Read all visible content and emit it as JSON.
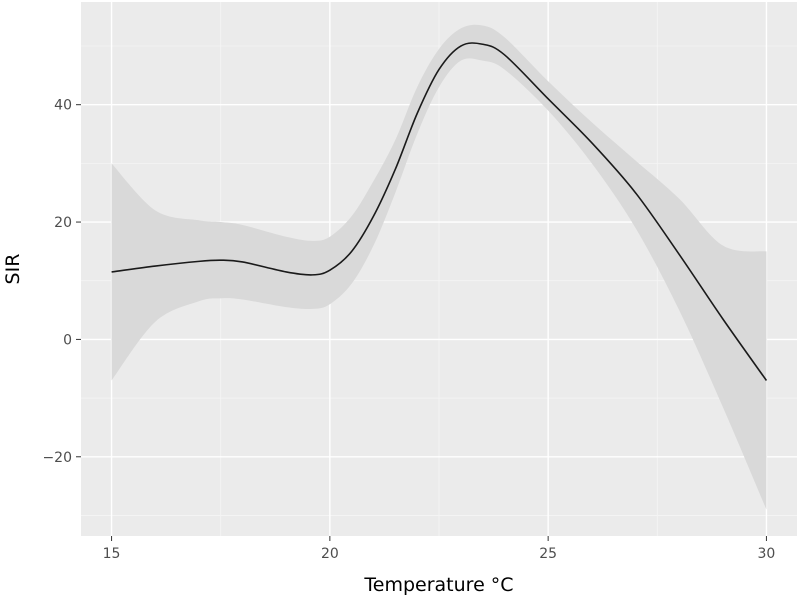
{
  "chart_data": {
    "type": "line",
    "title": "",
    "xlabel": "Temperature °C",
    "ylabel": "SIR",
    "xlim": [
      14.3,
      30.7
    ],
    "ylim": [
      -33.5,
      57.5
    ],
    "x_ticks": [
      15,
      20,
      25,
      30
    ],
    "y_ticks": [
      -20,
      0,
      20,
      40
    ],
    "grid": true,
    "legend": "none",
    "colors": {
      "panel_background": "#ebebeb",
      "grid_major": "#ffffff",
      "grid_minor": "#f5f5f5",
      "line": "#1a1a1a",
      "ribbon": "#d9d9d9",
      "tick_text": "#4d4d4d",
      "tick_mark": "#333333"
    },
    "series": [
      {
        "x": [
          15,
          16,
          17,
          17.5,
          18,
          19,
          19.6,
          20,
          20.5,
          21,
          21.5,
          22,
          22.5,
          23,
          23.5,
          24,
          25,
          26,
          27,
          28,
          29,
          30
        ],
        "values": [
          11.5,
          12.5,
          13.3,
          13.5,
          13.2,
          11.5,
          11,
          11.8,
          15,
          21,
          29,
          38.5,
          46,
          50,
          50.3,
          48.5,
          41,
          33.5,
          25,
          14.5,
          3.5,
          -7
        ],
        "lower": [
          -7,
          3,
          6.5,
          7,
          6.8,
          5.5,
          5.2,
          6,
          9.5,
          16,
          25,
          35,
          43,
          47.5,
          47.5,
          46,
          39,
          30,
          19,
          5,
          -11.5,
          -29
        ],
        "upper": [
          30,
          22,
          20.3,
          20,
          19.5,
          17.5,
          16.8,
          17.5,
          21,
          27,
          34,
          43,
          49.5,
          53,
          53.5,
          51.5,
          44,
          37,
          30.5,
          24,
          16,
          15
        ]
      }
    ]
  }
}
